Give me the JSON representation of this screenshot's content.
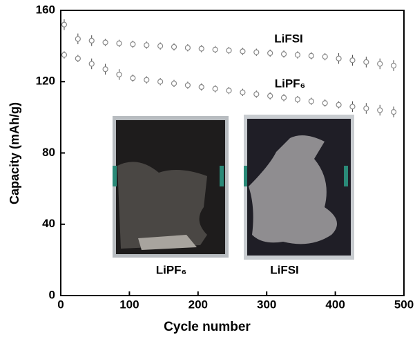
{
  "chart_data": {
    "type": "scatter",
    "x_label": "Cycle number",
    "y_label": "Capacity (mAh/g)",
    "xlim": [
      0,
      500
    ],
    "xticks": [
      0,
      100,
      200,
      300,
      400,
      500
    ],
    "ylim": [
      0,
      160
    ],
    "yticks": [
      0,
      40,
      80,
      120,
      160
    ],
    "x": [
      5,
      25,
      45,
      65,
      85,
      105,
      125,
      145,
      165,
      185,
      205,
      225,
      245,
      265,
      285,
      305,
      325,
      345,
      365,
      385,
      405,
      425,
      445,
      465,
      485
    ],
    "series": [
      {
        "name": "LiFSI",
        "color": "#888888",
        "values": [
          152,
          144,
          143,
          142,
          141.5,
          141,
          140.5,
          140,
          139.5,
          139,
          138.5,
          138,
          137.5,
          137,
          136.5,
          136,
          135.5,
          135,
          134.5,
          134,
          133,
          132,
          131,
          130,
          129
        ],
        "errors": [
          3,
          3,
          3,
          2,
          2,
          2,
          2,
          2,
          2,
          2,
          2,
          2,
          2,
          2,
          2,
          2,
          2,
          2,
          2,
          2,
          3,
          3,
          3,
          3,
          3
        ]
      },
      {
        "name": "LiPF₆",
        "color": "#888888",
        "values": [
          135,
          133,
          130,
          127,
          124,
          122,
          121,
          120,
          119,
          118,
          117,
          116,
          115,
          114,
          113,
          112,
          111,
          110,
          109,
          108,
          107,
          106,
          105,
          104,
          103
        ],
        "errors": [
          2,
          2,
          3,
          3,
          3,
          2,
          2,
          2,
          2,
          2,
          2,
          2,
          2,
          2,
          2,
          2,
          2,
          2,
          2,
          2,
          2,
          3,
          3,
          3,
          3
        ]
      }
    ],
    "annotations": [
      "LiFSI",
      "LiPF₆"
    ],
    "inset_labels": [
      "LiPF₆",
      "LiFSI"
    ]
  }
}
